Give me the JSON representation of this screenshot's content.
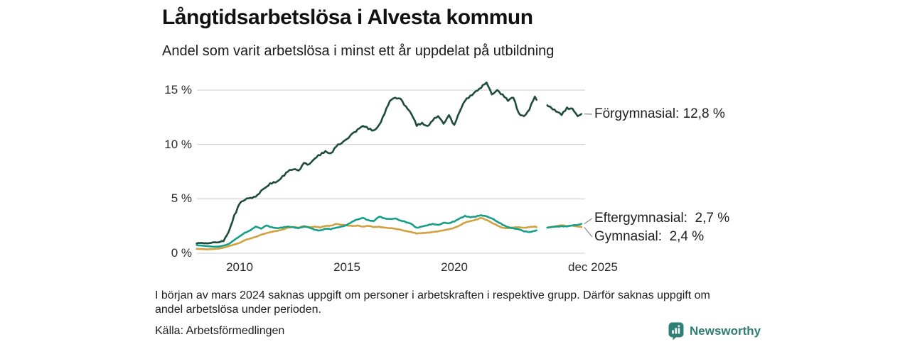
{
  "header": {
    "title": "Långtidsarbetslösa i Alvesta kommun",
    "subtitle": "Andel som varit arbetslösa i minst ett år uppdelat på utbildning"
  },
  "chart_data": {
    "type": "line",
    "title": "Långtidsarbetslösa i Alvesta kommun",
    "subtitle": "Andel som varit arbetslösa i minst ett år uppdelat på utbildning",
    "xlabel": "",
    "ylabel": "",
    "x_unit": "decimal_year_monthly_series",
    "xlim": [
      2008,
      2026
    ],
    "ylim": [
      0,
      16
    ],
    "grid": true,
    "legend_position": "end-of-line-labels",
    "data_gap_period": "late 2023 to early 2024 (missing data)",
    "x": [
      2008,
      2008.25,
      2008.5,
      2008.75,
      2009,
      2009.25,
      2009.5,
      2009.75,
      2010,
      2010.25,
      2010.5,
      2010.75,
      2011,
      2011.25,
      2011.5,
      2011.75,
      2012,
      2012.25,
      2012.5,
      2012.75,
      2013,
      2013.25,
      2013.5,
      2013.75,
      2014,
      2014.25,
      2014.5,
      2014.75,
      2015,
      2015.25,
      2015.5,
      2015.75,
      2016,
      2016.25,
      2016.5,
      2016.75,
      2017,
      2017.25,
      2017.5,
      2017.75,
      2018,
      2018.25,
      2018.5,
      2018.75,
      2019,
      2019.25,
      2019.5,
      2019.75,
      2020,
      2020.25,
      2020.5,
      2020.75,
      2021,
      2021.25,
      2021.5,
      2021.75,
      2022,
      2022.25,
      2022.5,
      2022.75,
      2023,
      2023.25,
      2023.5,
      2023.75,
      2023.83,
      2024,
      2024.17,
      2024.33,
      2024.5,
      2024.75,
      2025,
      2025.25,
      2025.5,
      2025.75,
      2025.92
    ],
    "series": [
      {
        "name": "Förgymnasial",
        "end_label": "Förgymnasial: 12,8 %",
        "current_value_pct": 12.8,
        "color": "#1f4b3c",
        "values": [
          0.9,
          0.95,
          0.9,
          1.0,
          1.0,
          1.1,
          2.0,
          3.5,
          4.55,
          4.9,
          5.1,
          5.2,
          5.75,
          6.1,
          6.4,
          6.6,
          7.1,
          7.5,
          7.7,
          7.6,
          8.3,
          8.2,
          8.7,
          9.0,
          9.4,
          9.2,
          9.8,
          10.1,
          10.5,
          11.0,
          11.4,
          11.7,
          11.4,
          11.3,
          11.8,
          12.8,
          14.0,
          14.3,
          14.2,
          13.5,
          12.8,
          11.7,
          12.0,
          11.7,
          12.2,
          12.6,
          11.9,
          12.7,
          11.8,
          13.0,
          14.0,
          14.5,
          14.9,
          15.2,
          15.7,
          14.6,
          15.0,
          14.6,
          14.0,
          14.3,
          12.9,
          12.6,
          13.2,
          14.4,
          14.1,
          null,
          null,
          13.6,
          13.4,
          13.0,
          12.7,
          13.4,
          13.3,
          12.6,
          12.8
        ]
      },
      {
        "name": "Eftergymnasial",
        "end_label": "Eftergymnasial:  2,7 %",
        "current_value_pct": 2.7,
        "color": "#169f88",
        "values": [
          0.75,
          0.7,
          0.65,
          0.6,
          0.6,
          0.7,
          0.85,
          1.2,
          1.55,
          1.9,
          2.1,
          2.45,
          2.25,
          2.55,
          2.4,
          2.3,
          2.35,
          2.45,
          2.4,
          2.3,
          2.45,
          2.35,
          2.15,
          2.1,
          2.25,
          2.2,
          2.35,
          2.45,
          2.6,
          2.9,
          3.1,
          3.25,
          3.05,
          2.95,
          3.35,
          3.2,
          3.15,
          3.2,
          3.0,
          2.85,
          2.7,
          2.35,
          2.45,
          2.55,
          2.7,
          2.6,
          2.8,
          2.75,
          2.9,
          3.2,
          3.45,
          3.3,
          3.35,
          3.5,
          3.4,
          3.2,
          2.9,
          2.6,
          2.4,
          2.3,
          2.2,
          2.0,
          1.95,
          2.05,
          2.1,
          null,
          null,
          2.35,
          2.4,
          2.45,
          2.5,
          2.45,
          2.55,
          2.6,
          2.7
        ]
      },
      {
        "name": "Gymnasial",
        "end_label": "Gymnasial:  2,4 %",
        "current_value_pct": 2.4,
        "color": "#d2a13f",
        "values": [
          0.4,
          0.38,
          0.35,
          0.38,
          0.42,
          0.5,
          0.65,
          0.8,
          0.95,
          1.2,
          1.35,
          1.5,
          1.7,
          1.85,
          1.95,
          2.05,
          2.2,
          2.35,
          2.4,
          2.35,
          2.5,
          2.4,
          2.45,
          2.35,
          2.5,
          2.55,
          2.7,
          2.6,
          2.55,
          2.5,
          2.55,
          2.45,
          2.5,
          2.4,
          2.45,
          2.35,
          2.3,
          2.25,
          2.15,
          2.05,
          1.95,
          1.8,
          1.85,
          1.9,
          1.95,
          2.0,
          2.1,
          2.2,
          2.35,
          2.55,
          2.8,
          2.95,
          3.1,
          3.25,
          3.05,
          2.8,
          2.55,
          2.35,
          2.3,
          2.35,
          2.4,
          2.35,
          2.4,
          2.45,
          2.4,
          null,
          null,
          2.35,
          2.4,
          2.5,
          2.55,
          2.5,
          2.55,
          2.45,
          2.4
        ]
      }
    ],
    "y_ticks": [
      {
        "value": 15,
        "label": "15 %"
      },
      {
        "value": 10,
        "label": "10 %"
      },
      {
        "value": 5,
        "label": "5 %"
      },
      {
        "value": 0,
        "label": "0 %"
      }
    ],
    "x_ticks": [
      {
        "year": 2010,
        "label": "2010"
      },
      {
        "year": 2015,
        "label": "2015"
      },
      {
        "year": 2020,
        "label": "2020"
      },
      {
        "year": 2025.92,
        "label": "dec 2025"
      }
    ]
  },
  "footer": {
    "note_line1": "I början av mars 2024 saknas uppgift om personer i arbetskraften i respektive grupp. Därför saknas uppgift om",
    "note_line2": "andel arbetslösa under perioden.",
    "source": "Källa: Arbetsförmedlingen",
    "brand": "Newsworthy"
  },
  "colors": {
    "forgymnasial_line": "#1f4b3c",
    "eftergymnasial_line": "#169f88",
    "gymnasial_line": "#d2a13f",
    "gridline": "#d6d6d6",
    "connector": "#8a8a8a",
    "brand_teal": "#2e7d72",
    "background": "#ffffff"
  }
}
